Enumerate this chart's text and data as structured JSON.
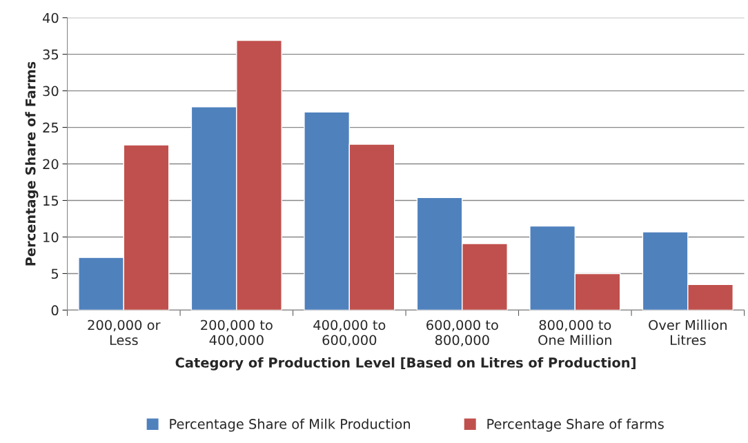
{
  "chart_data": {
    "type": "bar",
    "xlabel": "Category of Production Level [Based on Litres of Production]",
    "ylabel": "Percentage Share of Farms",
    "categories": [
      "200,000 or\nLess",
      "200,000 to\n400,000",
      "400,000 to\n600,000",
      "600,000 to\n800,000",
      "800,000 to\nOne Million",
      "Over Million\nLitres"
    ],
    "series": [
      {
        "name": "Percentage Share of Milk Production",
        "color": "#4f81bd",
        "values": [
          7.2,
          27.8,
          27.1,
          15.4,
          11.5,
          10.7
        ]
      },
      {
        "name": "Percentage Share of farms",
        "color": "#c0504d",
        "values": [
          22.6,
          36.9,
          22.7,
          9.1,
          5.0,
          3.5
        ]
      }
    ],
    "ylim": [
      0,
      40
    ],
    "yticks": [
      0,
      5,
      10,
      15,
      20,
      25,
      30,
      35,
      40
    ],
    "grid": "y",
    "legend": "bottom"
  }
}
